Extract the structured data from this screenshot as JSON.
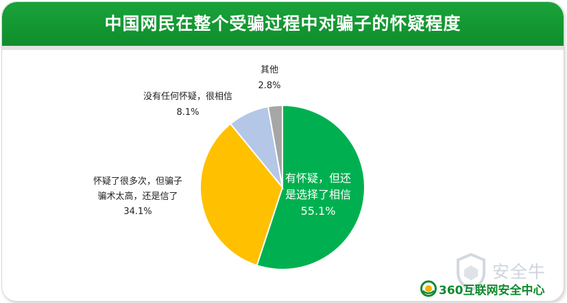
{
  "colors": {
    "banner": "#12982f",
    "green": "#00b050",
    "orange": "#ffc000",
    "light_blue": "#b4c7e7",
    "gray": "#a6a6a6"
  },
  "watermark": {
    "text": "安全牛"
  },
  "footer": {
    "brand": "360互联网安全中心"
  },
  "chart_data": {
    "type": "pie",
    "title": "中国网民在整个受骗过程中对骗子的怀疑程度",
    "start_angle_deg": 0,
    "direction": "clockwise",
    "slices": [
      {
        "label_lines": [
          "有怀疑，但还",
          "是选择了相信"
        ],
        "value": 55.1,
        "value_text": "55.1%",
        "color": "#00b050",
        "label_position": "inside"
      },
      {
        "label_lines": [
          "怀疑了很多次，但骗子",
          "骗术太高，还是信了"
        ],
        "value": 34.1,
        "value_text": "34.1%",
        "color": "#ffc000",
        "label_position": "outside-left"
      },
      {
        "label_lines": [
          "没有任何怀疑，很相信"
        ],
        "value": 8.1,
        "value_text": "8.1%",
        "color": "#b4c7e7",
        "label_position": "outside-top-left"
      },
      {
        "label_lines": [
          "其他"
        ],
        "value": 2.8,
        "value_text": "2.8%",
        "color": "#a6a6a6",
        "label_position": "outside-top"
      }
    ]
  }
}
